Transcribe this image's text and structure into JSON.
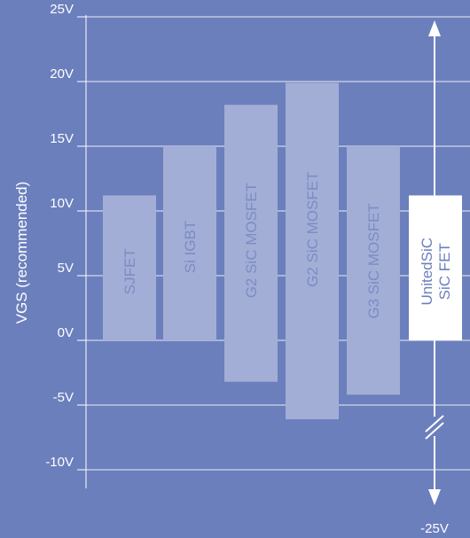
{
  "chart_data": {
    "type": "bar",
    "ylabel": "VGS (recommended)",
    "ylim": [
      -10,
      25
    ],
    "y_ticks": [
      {
        "value": 25,
        "label": "25V"
      },
      {
        "value": 20,
        "label": "20V"
      },
      {
        "value": 15,
        "label": "15V"
      },
      {
        "value": 10,
        "label": "10V"
      },
      {
        "value": 5,
        "label": "5V"
      },
      {
        "value": 0,
        "label": "0V"
      },
      {
        "value": -5,
        "label": "-5V"
      },
      {
        "value": -10,
        "label": "-10V"
      }
    ],
    "grid": true,
    "bars": [
      {
        "label": "SJFET",
        "min": 0,
        "max": 11.2
      },
      {
        "label": "Si IGBT",
        "min": 0,
        "max": 15
      },
      {
        "label": "G2 SiC MOSFET",
        "min": -3.2,
        "max": 18.2
      },
      {
        "label": "G2 SiC MOSFET",
        "min": -6.1,
        "max": 19.9
      },
      {
        "label": "G3 SiC MOSFET",
        "min": -4.2,
        "max": 15
      },
      {
        "label": "UnitedSiC SiC FET",
        "label_lines": [
          "UnitedSiC",
          "SiC FET"
        ],
        "min": 0,
        "max": 11.2,
        "highlight": true
      }
    ],
    "range_arrow": {
      "top": 25,
      "bottom": -25,
      "bottom_label": "-25V",
      "axis_break": true
    }
  },
  "colors": {
    "background": "#6b7fbd",
    "bar": "#a3aed6",
    "bar_text": "#7b8cc5",
    "highlight_bar": "#ffffff",
    "highlight_text": "#6b7fbd",
    "grid": "#ffffff"
  }
}
